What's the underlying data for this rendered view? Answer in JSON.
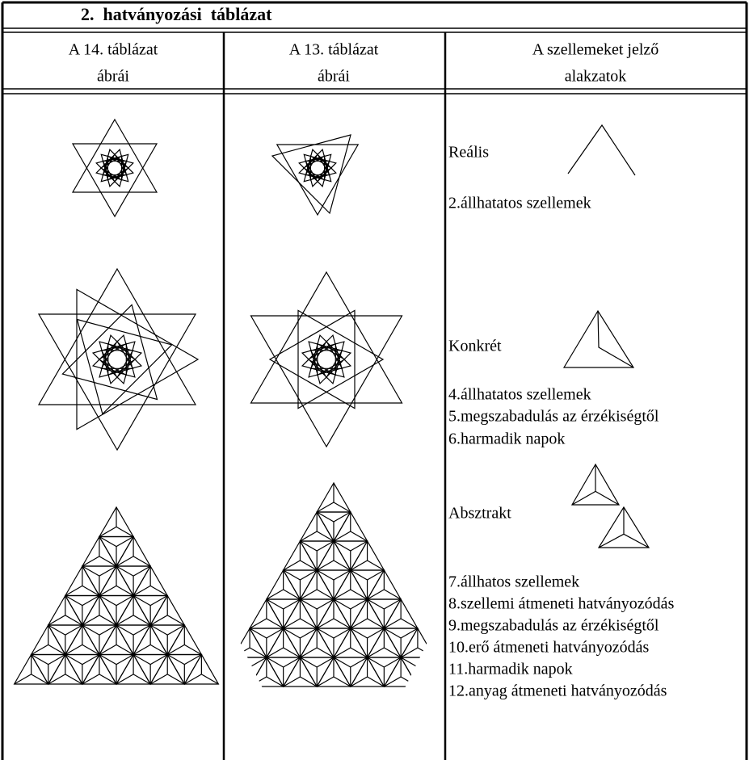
{
  "title": "2.  hatványozási  táblázat",
  "columns": [
    {
      "lines": [
        "A 14. táblázat",
        "ábrái"
      ]
    },
    {
      "lines": [
        "A 13. táblázat",
        "ábrái"
      ]
    },
    {
      "lines": [
        "A szellemeket jelző",
        "alakzatok"
      ]
    }
  ],
  "shapes": [
    {
      "label": "Reális",
      "items": [
        "2.állhatatos szellemek"
      ]
    },
    {
      "label": "Konkrét",
      "items": [
        "4.állhatatos szellemek",
        "5.megszabadulás az érzékiségtől",
        "6.harmadik napok"
      ]
    },
    {
      "label": "Absztrakt",
      "items": [
        "7.állhatos szellemek",
        "8.szellemi átmeneti hatványozódás",
        "9.megszabadulás az érzékiségtől",
        "10.erő átmeneti hatványozódás",
        "11.harmadik napok",
        "12.anyag átmeneti hatványozódás"
      ]
    }
  ]
}
